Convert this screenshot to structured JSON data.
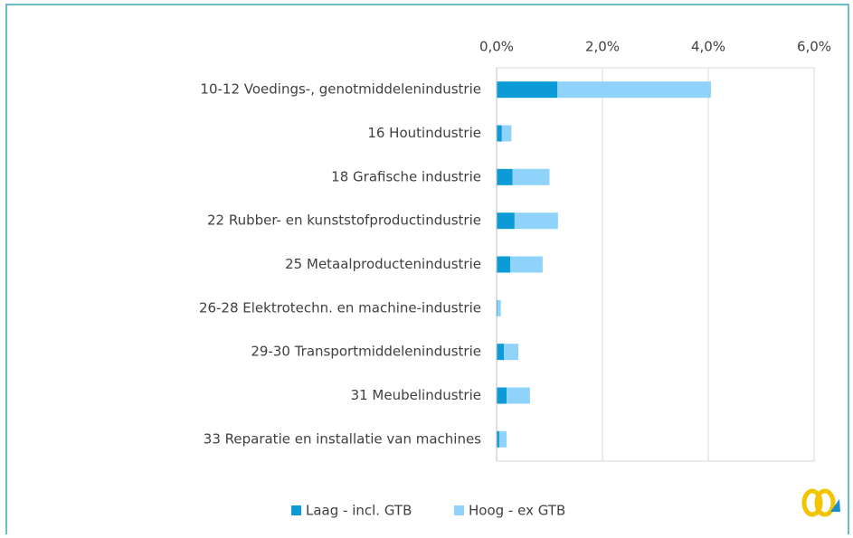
{
  "chart_data": {
    "type": "stacked-barh",
    "categories": [
      "10-12 Voedings-, genotmiddelenindustrie",
      "16 Houtindustrie",
      "18 Grafische industrie",
      "22 Rubber- en kunststofproductindustrie",
      "25 Metaalproductenindustrie",
      "26-28 Elektrotechn. en machine-industrie",
      "29-30 Transportmiddelenindustrie",
      "31 Meubelindustrie",
      "33 Reparatie en installatie van machines"
    ],
    "series": [
      {
        "name": "Laag - incl. GTB",
        "color": "#0d9bd7",
        "values": [
          1.15,
          0.1,
          0.3,
          0.34,
          0.26,
          0.02,
          0.14,
          0.19,
          0.05
        ]
      },
      {
        "name": "Hoog - ex GTB",
        "color": "#8fd3fb",
        "values": [
          2.9,
          0.18,
          0.7,
          0.82,
          0.61,
          0.06,
          0.27,
          0.44,
          0.14
        ]
      }
    ],
    "xlim": [
      0,
      6
    ],
    "xticks": [
      {
        "value": 0,
        "label": "0,0%"
      },
      {
        "value": 2,
        "label": "2,0%"
      },
      {
        "value": 4,
        "label": "4,0%"
      },
      {
        "value": 6,
        "label": "6,0%"
      }
    ],
    "grid": true,
    "legend": "bottom"
  }
}
